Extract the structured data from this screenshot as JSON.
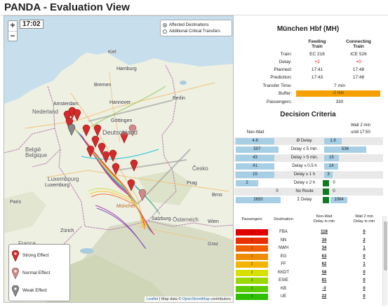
{
  "app": {
    "title": "PANDA - Evaluation View"
  },
  "map": {
    "zoom_in": "+",
    "zoom_out": "−",
    "time": "17:02",
    "modes": [
      {
        "label": "Affected Destinations",
        "selected": true
      },
      {
        "label": "Additional Critical Transfers",
        "selected": false
      }
    ],
    "legend": [
      {
        "label": "Strong Effect",
        "color": "#d42a2a"
      },
      {
        "label": "Normal Effect",
        "color": "#d08a8a"
      },
      {
        "label": "Weak Effect",
        "color": "#888888"
      }
    ],
    "attribution": {
      "leaflet": "Leaflet",
      "sep": " | Map data © ",
      "osm": "OpenStreetMap",
      "tail": " contributors"
    },
    "countries": {
      "nl": "Nederland",
      "be": "België",
      "be2": "Belgique",
      "de": "Deutschland",
      "lu": "Luxembourg",
      "cz": "Česko",
      "at": "Österreich",
      "fr": "France"
    },
    "cities": {
      "hamburg": "Hamburg",
      "bremen": "Bremen",
      "berlin": "Berlin",
      "amsterdam": "Amsterdam",
      "hannover": "Hannover",
      "gottingen": "Göttingen",
      "prag": "Prag",
      "munchen": "München",
      "paris": "Paris",
      "wien": "Wien",
      "zurich": "Zürich",
      "brno": "Brno",
      "salzburg": "Salzburg",
      "graz": "Graz",
      "kiel": "Kiel",
      "luxembourg": "Luxemburg"
    }
  },
  "station": {
    "title": "München Hbf (MH)",
    "feeding_header": "Feeding Train",
    "connecting_header": "Connecting Train",
    "rows": {
      "train_label": "Train:",
      "train_feed": "EC 216",
      "train_conn": "ICE 526",
      "delay_label": "Delay:",
      "delay_feed": "+2",
      "delay_conn": "+0",
      "planned_label": "Planned:",
      "planned_feed": "17:41",
      "planned_conn": "17:48",
      "prediction_label": "Prediction:",
      "prediction_feed": "17:43",
      "prediction_conn": "17:48",
      "transfer_label": "Transfer Time:",
      "transfer_value": "7 min",
      "buffer_label": "Buffer:",
      "buffer_value": "-2 min",
      "passengers_label": "Passengers:",
      "passengers_value": "330"
    }
  },
  "decision": {
    "title": "Decision Criteria",
    "col_nonwait": "Non-Wait",
    "col_wait": "Wait 2 min",
    "col_wait_until": "until 17:50",
    "criteria": [
      {
        "label": "Ø Delay.",
        "nonwait": "4.8",
        "wait": "1.9",
        "nw_frac": 0.86,
        "w_frac": 0.42,
        "wait_green": false
      },
      {
        "label": "Delay ≤ 5 min.",
        "nonwait": "507",
        "wait": "536",
        "nw_frac": 0.95,
        "w_frac": 1.0,
        "wait_green": false
      },
      {
        "label": "Delay > 5 min.",
        "nonwait": "43",
        "wait": "15",
        "nw_frac": 0.86,
        "w_frac": 0.35,
        "wait_green": false
      },
      {
        "label": "Delay ≥ 0,5 h",
        "nonwait": "41",
        "wait": "14",
        "nw_frac": 0.86,
        "w_frac": 0.34,
        "wait_green": false
      },
      {
        "label": "Delay ≥ 1 h",
        "nonwait": "15",
        "wait": "3",
        "nw_frac": 0.86,
        "w_frac": 0.2,
        "wait_green": false
      },
      {
        "label": "Delay ≥ 2 h",
        "nonwait": "2",
        "wait": "0",
        "nw_frac": 0.5,
        "w_frac": 0.0,
        "wait_green": true
      },
      {
        "label": "No Route",
        "nonwait": "0",
        "wait": "0",
        "nw_frac": 0.0,
        "w_frac": 0.0,
        "wait_green": true
      },
      {
        "label": "Σ Delay",
        "nonwait": "2650",
        "wait": "1064",
        "nw_frac": 1.0,
        "w_frac": 0.4,
        "wait_green": true
      }
    ]
  },
  "passengers": {
    "headers": {
      "passengers": "Passengers",
      "destination": "Destination",
      "nonwait_a": "Non-Wait",
      "nonwait_b": "Delay in min",
      "wait_a": "Wait 2 min",
      "wait_b": "Delay in min"
    },
    "rows": [
      {
        "count": "1",
        "dest": "FBA",
        "nonwait": "118",
        "wait": "0",
        "color": "#e00000"
      },
      {
        "count": "1",
        "dest": "NN",
        "nonwait": "34",
        "wait": "2",
        "color": "#ea3000"
      },
      {
        "count": "1",
        "dest": "NWH",
        "nonwait": "34",
        "wait": "1",
        "color": "#f06000"
      },
      {
        "count": "1",
        "dest": "EG",
        "nonwait": "63",
        "wait": "0",
        "color": "#f08c00"
      },
      {
        "count": "2",
        "dest": "FF",
        "nonwait": "62",
        "wait": "1",
        "color": "#f4b400"
      },
      {
        "count": "2",
        "dest": "KKDT",
        "nonwait": "58",
        "wait": "0",
        "color": "#d8e000"
      },
      {
        "count": "3",
        "dest": "ESIE",
        "nonwait": "81",
        "wait": "0",
        "color": "#9bd800"
      },
      {
        "count": "3",
        "dest": "KB",
        "nonwait": "-3",
        "wait": "0",
        "color": "#5ccc00"
      },
      {
        "count": "3",
        "dest": "UE",
        "nonwait": "22",
        "wait": "0",
        "color": "#2cc000"
      }
    ]
  }
}
